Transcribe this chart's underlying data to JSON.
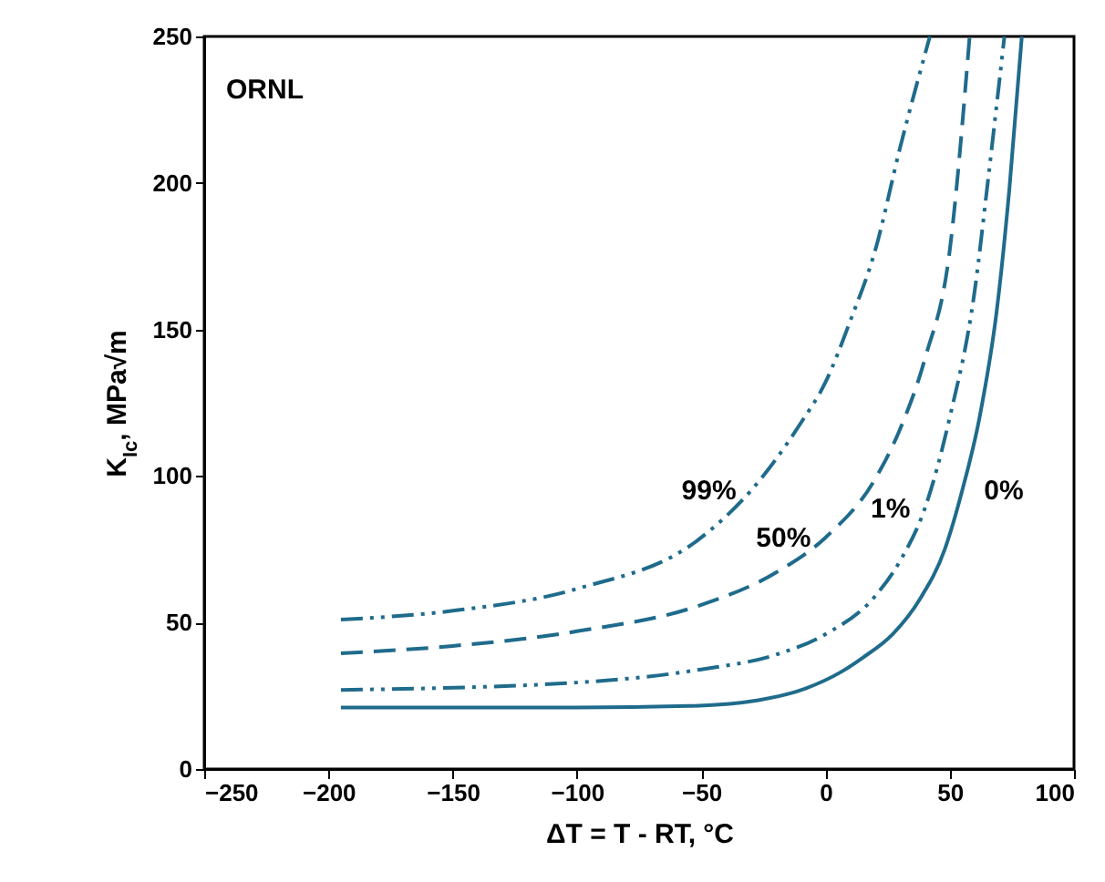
{
  "chart_data": {
    "type": "line",
    "xlabel": "ΔT = T - RT, °C",
    "ylabel": "K$_{Ic}$, MPa√m",
    "xlim": [
      -250,
      100
    ],
    "xticks": [
      -250,
      -200,
      -150,
      -100,
      -50,
      0,
      50,
      100
    ],
    "ylim": [
      0,
      250
    ],
    "yticks": [
      0,
      50,
      100,
      150,
      200,
      250
    ],
    "grid": false,
    "marker": "none",
    "series": [
      {
        "name": "0%",
        "color": "#1f6b8c",
        "line_style": "solid",
        "x": [
          -195,
          -100,
          -55,
          -27,
          -8,
          6,
          15,
          27,
          38,
          48,
          55,
          62,
          69,
          74,
          79
        ],
        "values": [
          21,
          21,
          21.5,
          23.5,
          27.5,
          33,
          38,
          46,
          58,
          75,
          95,
          120,
          157,
          198,
          250
        ]
      },
      {
        "name": "1%",
        "color": "#1f6b8c",
        "line_style": "dotted",
        "x": [
          -195,
          -100,
          -50,
          -20,
          0,
          20,
          30,
          40,
          50,
          60,
          65,
          70,
          72
        ],
        "values": [
          27,
          29.5,
          34,
          39,
          46,
          59,
          71,
          89,
          120,
          163,
          198,
          235,
          250
        ]
      },
      {
        "name": "50%",
        "color": "#1f6b8c",
        "line_style": "dashed",
        "x": [
          -195,
          -150,
          -100,
          -50,
          -20,
          0,
          20,
          30,
          40,
          50,
          58
        ],
        "values": [
          39.5,
          42,
          47,
          56,
          67,
          79,
          99,
          116,
          140,
          177,
          250
        ]
      },
      {
        "name": "99%",
        "color": "#1f6b8c",
        "line_style": "dotted",
        "x": [
          -195,
          -150,
          -100,
          -50,
          -30,
          -10,
          0,
          10,
          20,
          30,
          42
        ],
        "values": [
          51,
          54,
          61.5,
          79,
          95,
          118,
          132,
          153,
          177,
          212,
          250
        ]
      }
    ],
    "annotations": [
      "ORNL"
    ]
  }
}
